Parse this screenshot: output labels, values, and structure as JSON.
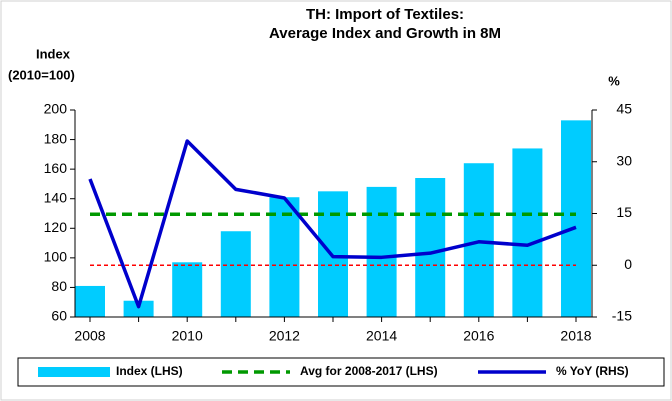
{
  "chart_data": {
    "type": "combo",
    "title": [
      "TH: Import of Textiles:",
      "Average Index and Growth in 8M"
    ],
    "y_label": [
      "Index",
      "(2010=100)"
    ],
    "y2_label": "%",
    "categories": [
      "2008",
      null,
      "2010",
      null,
      "2012",
      null,
      "2014",
      null,
      "2016",
      null,
      "2018"
    ],
    "series": [
      {
        "name": "Index (LHS)",
        "type": "bar",
        "axis": "y",
        "color": "#00ccff",
        "values": [
          81,
          71,
          97,
          118,
          141,
          145,
          148,
          154,
          164,
          174,
          193
        ]
      },
      {
        "name": "Avg for 2008-2017 (LHS)",
        "type": "line",
        "dashed": true,
        "axis": "y",
        "color": "#009900",
        "values": [
          129.5,
          129.5,
          129.5,
          129.5,
          129.5,
          129.5,
          129.5,
          129.5,
          129.5,
          129.5,
          129.5
        ]
      },
      {
        "name": "% YoY (RHS)",
        "type": "line",
        "axis": "y2",
        "color": "#0000cc",
        "values": [
          25,
          -12,
          36,
          22,
          19.5,
          2.5,
          2.3,
          3.5,
          6.8,
          5.8,
          11
        ]
      }
    ],
    "ylim": [
      60,
      200
    ],
    "yticks": [
      60,
      80,
      100,
      120,
      140,
      160,
      180,
      200
    ],
    "y2lim": [
      -15,
      45
    ],
    "y2ticks": [
      -15,
      0,
      15,
      30,
      45
    ],
    "zero_line": true,
    "zero_line_color": "#ff0000",
    "legend": "bottom"
  }
}
